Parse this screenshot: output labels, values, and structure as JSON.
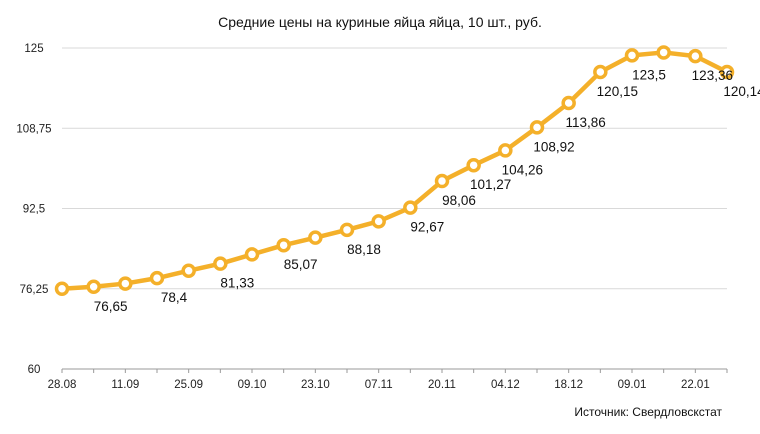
{
  "chart_data": {
    "type": "line",
    "title": "Средние цены на куриные яйца яйца, 10 шт., руб.",
    "source": "Источник: Свердловскстат",
    "xlabel": "",
    "ylabel": "",
    "ylim": [
      60,
      125
    ],
    "y_ticks": [
      "60",
      "76,25",
      "92,5",
      "108,75",
      "125"
    ],
    "x_tick_labels": [
      "28.08",
      "11.09",
      "25.09",
      "09.10",
      "23.10",
      "07.11",
      "20.11",
      "04.12",
      "18.12",
      "09.01",
      "22.01"
    ],
    "x": [
      "28.08",
      "04.09",
      "11.09",
      "18.09",
      "25.09",
      "02.10",
      "09.10",
      "16.10",
      "23.10",
      "30.10",
      "07.11",
      "13.11",
      "20.11",
      "27.11",
      "04.12",
      "11.12",
      "18.12",
      "25.12",
      "09.01",
      "15.01",
      "22.01",
      "29.01"
    ],
    "values": [
      76.25,
      76.65,
      77.3,
      78.4,
      79.9,
      81.33,
      83.2,
      85.07,
      86.6,
      88.18,
      89.9,
      92.67,
      98.06,
      101.27,
      104.26,
      108.92,
      113.86,
      120.15,
      123.5,
      124.1,
      123.36,
      120.14
    ],
    "data_labels": [
      {
        "index": 1,
        "text": "76,65"
      },
      {
        "index": 3,
        "text": "78,4"
      },
      {
        "index": 5,
        "text": "81,33"
      },
      {
        "index": 7,
        "text": "85,07"
      },
      {
        "index": 9,
        "text": "88,18"
      },
      {
        "index": 11,
        "text": "92,67"
      },
      {
        "index": 12,
        "text": "98,06"
      },
      {
        "index": 13,
        "text": "101,27"
      },
      {
        "index": 14,
        "text": "104,26"
      },
      {
        "index": 15,
        "text": "108,92"
      },
      {
        "index": 16,
        "text": "113,86"
      },
      {
        "index": 17,
        "text": "120,15"
      },
      {
        "index": 18,
        "text": "123,5"
      },
      {
        "index": 20,
        "text": "123,36"
      },
      {
        "index": 21,
        "text": "120,14"
      }
    ],
    "colors": {
      "line": "#f4b02a",
      "marker_fill": "#ffffff",
      "grid": "#d9d9d9"
    }
  }
}
